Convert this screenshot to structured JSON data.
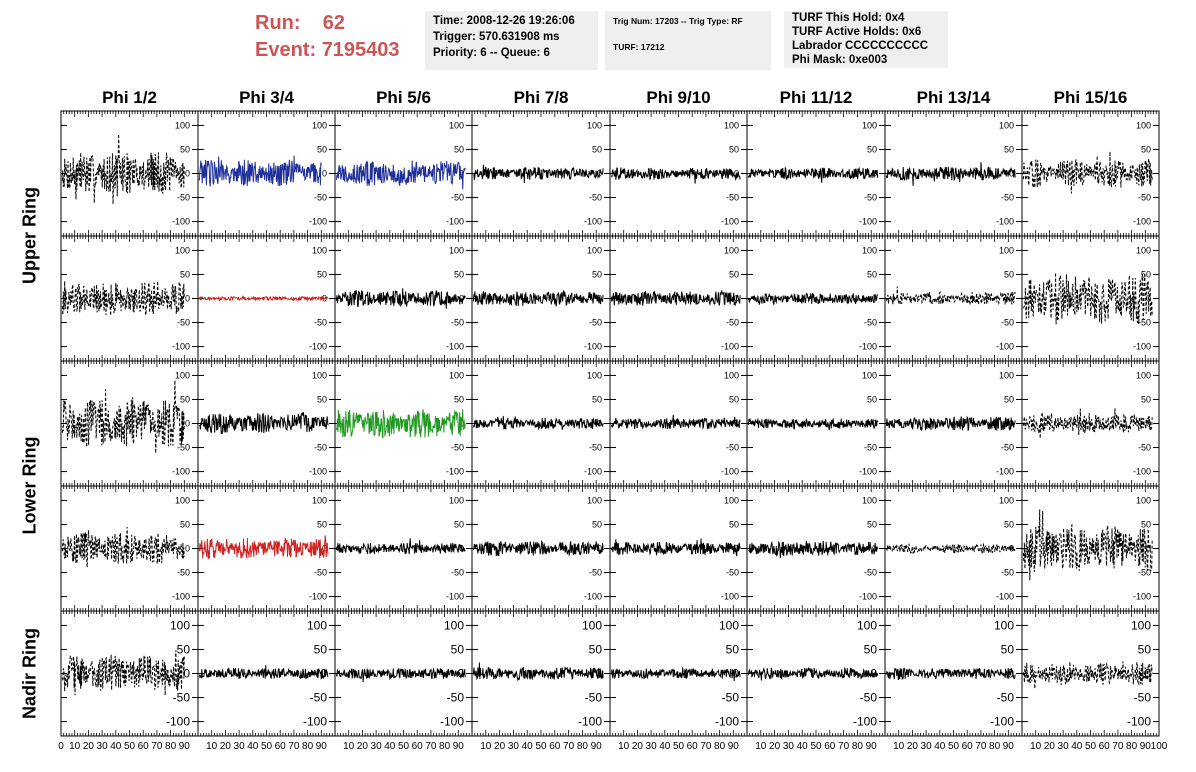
{
  "header": {
    "run_label": "Run:",
    "run_value": "62",
    "event_label": "Event:",
    "event_value": "7195403"
  },
  "info_boxes": {
    "time": "Time: 2008-12-26 19:26:06",
    "trigger": "Trigger: 570.631908 ms",
    "priority": "Priority: 6 -- Queue: 6",
    "trig_num": "Trig Num: 17203 -- Trig Type: RF",
    "turf": "TURF: 17212",
    "turf_this_hold": "TURF This Hold: 0x4",
    "turf_active_holds": "TURF Active Holds: 0x6",
    "labrador": "Labrador CCCCCCCCCC",
    "phi_mask": "Phi Mask: 0xe003"
  },
  "colors": {
    "header_red": "#cc5555",
    "info_bg": "#efefef",
    "trace_black": "#000000",
    "trace_blue": "#1f2f9a",
    "trace_red": "#cc2222",
    "trace_green": "#229922"
  },
  "chart_data": {
    "type": "line",
    "columns": [
      "Phi 1/2",
      "Phi 3/4",
      "Phi 5/6",
      "Phi 7/8",
      "Phi 9/10",
      "Phi 11/12",
      "Phi 13/14",
      "Phi 15/16"
    ],
    "rows": [
      {
        "name": "Upper Ring",
        "panels": 2
      },
      {
        "name": "Lower Ring",
        "panels": 2
      },
      {
        "name": "Nadir Ring",
        "panels": 1
      }
    ],
    "xlim": [
      0,
      100
    ],
    "ylim": [
      -130,
      130
    ],
    "x_ticks": [
      0,
      10,
      20,
      30,
      40,
      50,
      60,
      70,
      80,
      90,
      100
    ],
    "y_ticks": [
      -100,
      -50,
      0,
      50,
      100
    ],
    "grid": false,
    "panels": [
      [
        {
          "style": "dashed",
          "color": "black",
          "amp": 48,
          "x_end": 90
        },
        {
          "style": "solid",
          "color": "blue",
          "amp": 30,
          "x_end": 90
        },
        {
          "style": "solid",
          "color": "blue",
          "amp": 28,
          "x_end": 95
        },
        {
          "style": "solid",
          "color": "black",
          "amp": 14,
          "x_end": 95
        },
        {
          "style": "solid",
          "color": "black",
          "amp": 13,
          "x_end": 95
        },
        {
          "style": "solid",
          "color": "black",
          "amp": 12,
          "x_end": 95
        },
        {
          "style": "solid",
          "color": "black",
          "amp": 15,
          "x_end": 95
        },
        {
          "style": "dashed",
          "color": "black",
          "amp": 30,
          "x_end": 95
        }
      ],
      [
        {
          "style": "dashed",
          "color": "black",
          "amp": 38,
          "x_end": 90
        },
        {
          "style": "solid",
          "color": "red",
          "amp": 4,
          "x_end": 95
        },
        {
          "style": "solid",
          "color": "black",
          "amp": 18,
          "x_end": 95
        },
        {
          "style": "solid",
          "color": "black",
          "amp": 16,
          "x_end": 95
        },
        {
          "style": "solid",
          "color": "black",
          "amp": 16,
          "x_end": 95
        },
        {
          "style": "solid",
          "color": "black",
          "amp": 12,
          "x_end": 95
        },
        {
          "style": "dashed",
          "color": "black",
          "amp": 14,
          "x_end": 95
        },
        {
          "style": "dashed",
          "color": "black",
          "amp": 55,
          "x_end": 95
        }
      ],
      [
        {
          "style": "dashed",
          "color": "black",
          "amp": 55,
          "x_end": 90
        },
        {
          "style": "solid",
          "color": "black",
          "amp": 22,
          "x_end": 95
        },
        {
          "style": "solid",
          "color": "green",
          "amp": 30,
          "x_end": 95
        },
        {
          "style": "solid",
          "color": "black",
          "amp": 12,
          "x_end": 95
        },
        {
          "style": "solid",
          "color": "black",
          "amp": 12,
          "x_end": 95
        },
        {
          "style": "solid",
          "color": "black",
          "amp": 11,
          "x_end": 95
        },
        {
          "style": "solid",
          "color": "black",
          "amp": 15,
          "x_end": 95
        },
        {
          "style": "dashed",
          "color": "black",
          "amp": 22,
          "x_end": 95
        }
      ],
      [
        {
          "style": "dashed",
          "color": "black",
          "amp": 34,
          "x_end": 90
        },
        {
          "style": "solid",
          "color": "red",
          "amp": 22,
          "x_end": 95
        },
        {
          "style": "solid",
          "color": "black",
          "amp": 12,
          "x_end": 95
        },
        {
          "style": "solid",
          "color": "black",
          "amp": 16,
          "x_end": 95
        },
        {
          "style": "solid",
          "color": "black",
          "amp": 14,
          "x_end": 95
        },
        {
          "style": "solid",
          "color": "black",
          "amp": 16,
          "x_end": 95
        },
        {
          "style": "dashed",
          "color": "black",
          "amp": 10,
          "x_end": 95
        },
        {
          "style": "dashed",
          "color": "black",
          "amp": 50,
          "x_end": 95
        }
      ],
      [
        {
          "style": "dashed",
          "color": "black",
          "amp": 40,
          "x_end": 90
        },
        {
          "style": "solid",
          "color": "black",
          "amp": 12,
          "x_end": 95
        },
        {
          "style": "solid",
          "color": "black",
          "amp": 12,
          "x_end": 95
        },
        {
          "style": "solid",
          "color": "black",
          "amp": 14,
          "x_end": 95
        },
        {
          "style": "solid",
          "color": "black",
          "amp": 11,
          "x_end": 95
        },
        {
          "style": "solid",
          "color": "black",
          "amp": 12,
          "x_end": 95
        },
        {
          "style": "solid",
          "color": "black",
          "amp": 12,
          "x_end": 95
        },
        {
          "style": "dashed",
          "color": "black",
          "amp": 24,
          "x_end": 95
        }
      ]
    ]
  }
}
